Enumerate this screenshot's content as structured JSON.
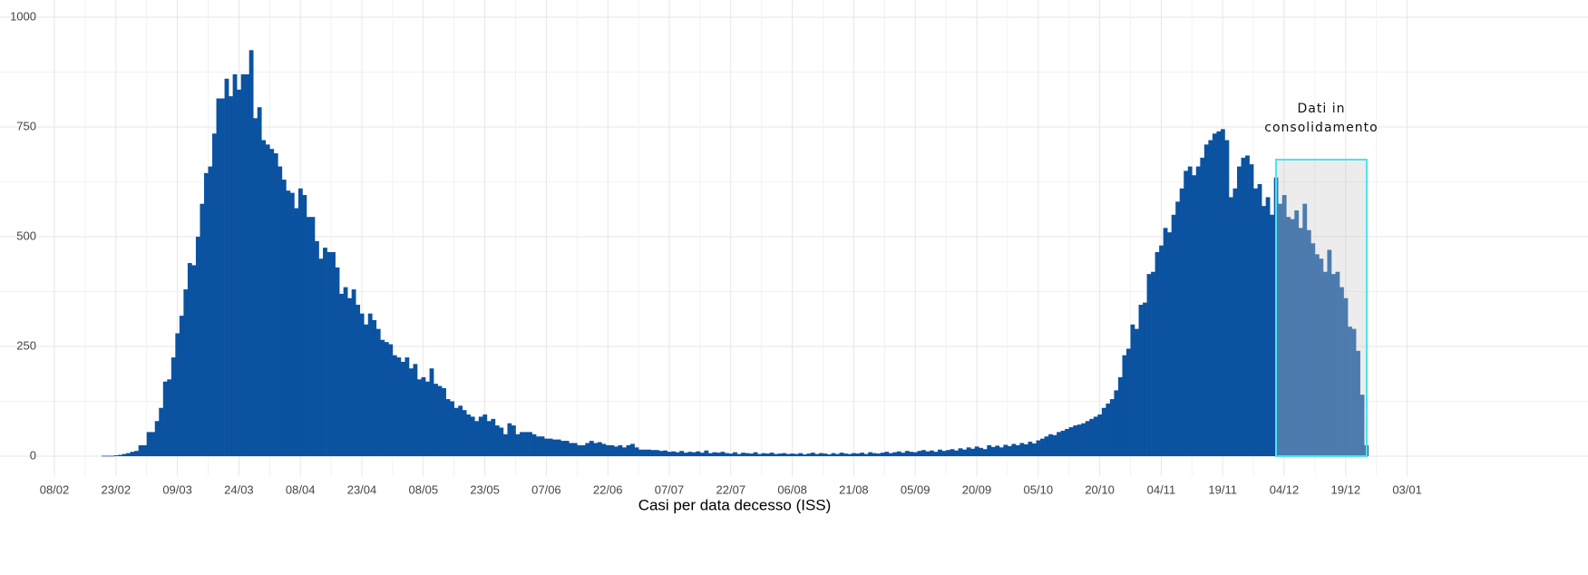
{
  "chart_data": {
    "type": "bar",
    "x_title": "Casi per data decesso (ISS)",
    "annotation": [
      "Dati in",
      "consolidamento"
    ],
    "color": "#0b52a0",
    "ylim": [
      0,
      1000
    ],
    "yticks": [
      0,
      250,
      500,
      750,
      1000
    ],
    "grid": true,
    "categories": [
      "08/02",
      null,
      null,
      null,
      null,
      null,
      null,
      null,
      null,
      null,
      null,
      null,
      null,
      null,
      null,
      "23/02",
      null,
      null,
      null,
      null,
      null,
      null,
      null,
      null,
      null,
      null,
      null,
      null,
      null,
      null,
      "09/03",
      null,
      null,
      null,
      null,
      null,
      null,
      null,
      null,
      null,
      null,
      null,
      null,
      null,
      null,
      "24/03",
      null,
      null,
      null,
      null,
      null,
      null,
      null,
      null,
      null,
      null,
      null,
      null,
      null,
      null,
      "08/04",
      null,
      null,
      null,
      null,
      null,
      null,
      null,
      null,
      null,
      null,
      null,
      null,
      null,
      null,
      "23/04",
      null,
      null,
      null,
      null,
      null,
      null,
      null,
      null,
      null,
      null,
      null,
      null,
      null,
      null,
      "08/05",
      null,
      null,
      null,
      null,
      null,
      null,
      null,
      null,
      null,
      null,
      null,
      null,
      null,
      null,
      "23/05",
      null,
      null,
      null,
      null,
      null,
      null,
      null,
      null,
      null,
      null,
      null,
      null,
      null,
      null,
      "07/06",
      null,
      null,
      null,
      null,
      null,
      null,
      null,
      null,
      null,
      null,
      null,
      null,
      null,
      null,
      "22/06",
      null,
      null,
      null,
      null,
      null,
      null,
      null,
      null,
      null,
      null,
      null,
      null,
      null,
      null,
      "07/07",
      null,
      null,
      null,
      null,
      null,
      null,
      null,
      null,
      null,
      null,
      null,
      null,
      null,
      null,
      "22/07",
      null,
      null,
      null,
      null,
      null,
      null,
      null,
      null,
      null,
      null,
      null,
      null,
      null,
      null,
      "06/08",
      null,
      null,
      null,
      null,
      null,
      null,
      null,
      null,
      null,
      null,
      null,
      null,
      null,
      null,
      "21/08",
      null,
      null,
      null,
      null,
      null,
      null,
      null,
      null,
      null,
      null,
      null,
      null,
      null,
      null,
      "05/09",
      null,
      null,
      null,
      null,
      null,
      null,
      null,
      null,
      null,
      null,
      null,
      null,
      null,
      null,
      "20/09",
      null,
      null,
      null,
      null,
      null,
      null,
      null,
      null,
      null,
      null,
      null,
      null,
      null,
      null,
      "05/10",
      null,
      null,
      null,
      null,
      null,
      null,
      null,
      null,
      null,
      null,
      null,
      null,
      null,
      null,
      "20/10",
      null,
      null,
      null,
      null,
      null,
      null,
      null,
      null,
      null,
      null,
      null,
      null,
      null,
      null,
      "04/11",
      null,
      null,
      null,
      null,
      null,
      null,
      null,
      null,
      null,
      null,
      null,
      null,
      null,
      null,
      "19/11",
      null,
      null,
      null,
      null,
      null,
      null,
      null,
      null,
      null,
      null,
      null,
      null,
      null,
      null,
      "04/12",
      null,
      null,
      null,
      null,
      null,
      null,
      null,
      null,
      null,
      null,
      null,
      null,
      null,
      null,
      "19/12",
      null,
      null,
      null,
      null,
      null,
      null,
      null,
      null,
      null,
      null,
      null,
      null,
      null,
      null,
      "03/01"
    ],
    "values": [
      null,
      null,
      null,
      null,
      null,
      null,
      null,
      null,
      null,
      null,
      null,
      null,
      1,
      1,
      1,
      2,
      3,
      5,
      7,
      10,
      12,
      25,
      25,
      55,
      55,
      80,
      110,
      170,
      175,
      225,
      280,
      320,
      380,
      440,
      435,
      500,
      575,
      645,
      660,
      735,
      815,
      815,
      860,
      820,
      870,
      835,
      870,
      870,
      925,
      770,
      795,
      720,
      710,
      700,
      690,
      660,
      630,
      605,
      600,
      565,
      610,
      595,
      545,
      545,
      490,
      450,
      475,
      465,
      465,
      430,
      370,
      385,
      360,
      380,
      345,
      325,
      300,
      325,
      310,
      290,
      265,
      260,
      255,
      230,
      225,
      215,
      225,
      200,
      210,
      175,
      180,
      170,
      200,
      165,
      160,
      155,
      130,
      125,
      110,
      115,
      105,
      95,
      90,
      80,
      90,
      95,
      80,
      85,
      70,
      65,
      50,
      75,
      70,
      50,
      55,
      55,
      55,
      50,
      45,
      45,
      40,
      40,
      38,
      38,
      35,
      35,
      30,
      30,
      25,
      25,
      30,
      35,
      30,
      32,
      28,
      25,
      25,
      22,
      25,
      20,
      25,
      28,
      20,
      15,
      15,
      15,
      14,
      14,
      12,
      13,
      10,
      11,
      9,
      12,
      8,
      10,
      9,
      11,
      8,
      13,
      7,
      9,
      8,
      10,
      7,
      6,
      9,
      5,
      8,
      7,
      6,
      9,
      5,
      7,
      6,
      8,
      5,
      6,
      7,
      5,
      6,
      5,
      7,
      4,
      6,
      8,
      5,
      7,
      6,
      4,
      7,
      5,
      8,
      6,
      5,
      7,
      6,
      8,
      5,
      9,
      7,
      6,
      8,
      10,
      7,
      9,
      11,
      8,
      12,
      10,
      9,
      12,
      14,
      11,
      13,
      10,
      15,
      12,
      14,
      16,
      13,
      18,
      15,
      20,
      17,
      22,
      19,
      16,
      25,
      21,
      24,
      20,
      26,
      23,
      28,
      25,
      30,
      27,
      33,
      29,
      36,
      40,
      45,
      50,
      48,
      55,
      58,
      62,
      66,
      70,
      72,
      75,
      80,
      85,
      90,
      95,
      110,
      120,
      130,
      150,
      180,
      230,
      245,
      300,
      290,
      345,
      350,
      415,
      420,
      465,
      480,
      520,
      510,
      550,
      580,
      610,
      650,
      660,
      640,
      660,
      680,
      710,
      720,
      735,
      740,
      745,
      720,
      590,
      610,
      660,
      680,
      685,
      665,
      610,
      620,
      570,
      590,
      550,
      635,
      575,
      595,
      545,
      540,
      560,
      520,
      575,
      515,
      485,
      460,
      450,
      420,
      470,
      415,
      420,
      385,
      360,
      295,
      290,
      240,
      140,
      25,
      null,
      null,
      null,
      null,
      null,
      null,
      null,
      null,
      null,
      null
    ]
  }
}
